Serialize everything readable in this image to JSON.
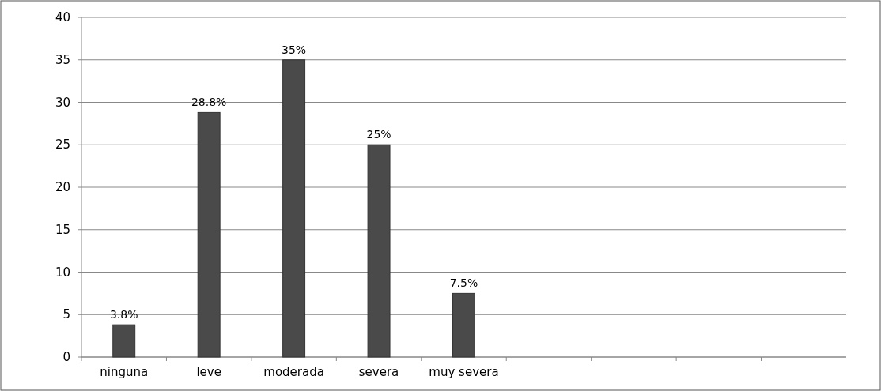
{
  "chart_data": {
    "type": "bar",
    "categories": [
      "ninguna",
      "leve",
      "moderada",
      "severa",
      "muy severa",
      null,
      null,
      null,
      null
    ],
    "values": [
      3.8,
      28.8,
      35,
      25,
      7.5,
      null,
      null,
      null,
      null
    ],
    "value_labels": [
      "3.8%",
      "28.8%",
      "35%",
      "25%",
      "7.5%",
      null,
      null,
      null,
      null
    ],
    "color": "#4a4a4a",
    "ylim": [
      0,
      40
    ],
    "yticks": [
      0,
      5,
      10,
      15,
      20,
      25,
      30,
      35,
      40
    ],
    "grid": "y"
  }
}
